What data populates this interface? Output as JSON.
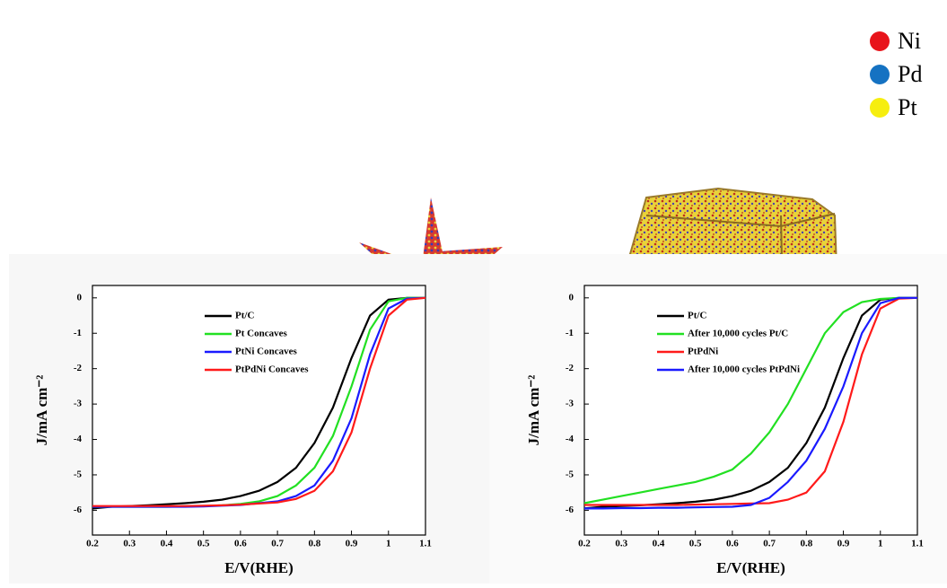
{
  "illustration": {
    "legend": [
      {
        "label": "Ni",
        "color": "#e8141b"
      },
      {
        "label": "Pd",
        "color": "#1572c2"
      },
      {
        "label": "Pt",
        "color": "#f6ee0f"
      }
    ]
  },
  "chart_data": [
    {
      "type": "line",
      "xlabel": "E/V(RHE)",
      "ylabel": "J/mA cm⁻²",
      "xlim": [
        0.2,
        1.1
      ],
      "ylim": [
        -6.7,
        0.35
      ],
      "xticks": [
        0.2,
        0.3,
        0.4,
        0.5,
        0.6,
        0.7,
        0.8,
        0.9,
        1.0,
        1.1
      ],
      "yticks": [
        0,
        -1,
        -2,
        -3,
        -4,
        -5,
        -6
      ],
      "x": [
        0.2,
        0.25,
        0.3,
        0.35,
        0.4,
        0.45,
        0.5,
        0.55,
        0.6,
        0.65,
        0.7,
        0.75,
        0.8,
        0.85,
        0.9,
        0.95,
        1.0,
        1.05,
        1.1
      ],
      "series": [
        {
          "name": "Pt/C",
          "color": "#000000",
          "values": [
            -5.95,
            -5.9,
            -5.88,
            -5.86,
            -5.83,
            -5.8,
            -5.76,
            -5.7,
            -5.6,
            -5.45,
            -5.2,
            -4.8,
            -4.1,
            -3.1,
            -1.7,
            -0.5,
            -0.05,
            0,
            0
          ]
        },
        {
          "name": "Pt Concaves",
          "color": "#22e022",
          "values": [
            -5.9,
            -5.9,
            -5.9,
            -5.9,
            -5.9,
            -5.89,
            -5.88,
            -5.86,
            -5.82,
            -5.75,
            -5.6,
            -5.3,
            -4.8,
            -3.9,
            -2.5,
            -0.9,
            -0.1,
            0,
            0
          ]
        },
        {
          "name": "PtNi Concaves",
          "color": "#1a1aff",
          "values": [
            -5.9,
            -5.9,
            -5.9,
            -5.9,
            -5.9,
            -5.9,
            -5.89,
            -5.87,
            -5.85,
            -5.8,
            -5.75,
            -5.6,
            -5.3,
            -4.6,
            -3.4,
            -1.6,
            -0.3,
            -0.02,
            0
          ]
        },
        {
          "name": "PtPdNi Concaves",
          "color": "#ff1a1a",
          "values": [
            -5.88,
            -5.88,
            -5.88,
            -5.88,
            -5.88,
            -5.88,
            -5.87,
            -5.86,
            -5.84,
            -5.81,
            -5.78,
            -5.68,
            -5.45,
            -4.9,
            -3.8,
            -2.0,
            -0.5,
            -0.05,
            0
          ]
        }
      ]
    },
    {
      "type": "line",
      "xlabel": "E/V(RHE)",
      "ylabel": "J/mA cm⁻²",
      "xlim": [
        0.2,
        1.1
      ],
      "ylim": [
        -6.7,
        0.35
      ],
      "xticks": [
        0.2,
        0.3,
        0.4,
        0.5,
        0.6,
        0.7,
        0.8,
        0.9,
        1.0,
        1.1
      ],
      "yticks": [
        0,
        -1,
        -2,
        -3,
        -4,
        -5,
        -6
      ],
      "x": [
        0.2,
        0.25,
        0.3,
        0.35,
        0.4,
        0.45,
        0.5,
        0.55,
        0.6,
        0.65,
        0.7,
        0.75,
        0.8,
        0.85,
        0.9,
        0.95,
        1.0,
        1.05,
        1.1
      ],
      "series": [
        {
          "name": "Pt/C",
          "color": "#000000",
          "values": [
            -5.95,
            -5.9,
            -5.88,
            -5.86,
            -5.83,
            -5.8,
            -5.76,
            -5.7,
            -5.6,
            -5.45,
            -5.2,
            -4.8,
            -4.1,
            -3.1,
            -1.7,
            -0.5,
            -0.05,
            0,
            0
          ]
        },
        {
          "name": "After 10,000 cycles Pt/C",
          "color": "#22e022",
          "values": [
            -5.8,
            -5.7,
            -5.6,
            -5.5,
            -5.4,
            -5.3,
            -5.2,
            -5.05,
            -4.85,
            -4.4,
            -3.8,
            -3.0,
            -2.0,
            -1.0,
            -0.4,
            -0.12,
            -0.03,
            0,
            0
          ]
        },
        {
          "name": "PtPdNi",
          "color": "#ff1a1a",
          "values": [
            -5.85,
            -5.85,
            -5.85,
            -5.85,
            -5.85,
            -5.85,
            -5.84,
            -5.83,
            -5.82,
            -5.81,
            -5.8,
            -5.7,
            -5.5,
            -4.9,
            -3.5,
            -1.6,
            -0.3,
            -0.02,
            0
          ]
        },
        {
          "name": "After 10,000 cycles PtPdNi",
          "color": "#1a1aff",
          "values": [
            -5.95,
            -5.95,
            -5.94,
            -5.94,
            -5.93,
            -5.93,
            -5.92,
            -5.91,
            -5.9,
            -5.85,
            -5.65,
            -5.2,
            -4.6,
            -3.7,
            -2.5,
            -1.0,
            -0.15,
            0,
            0
          ]
        }
      ]
    }
  ]
}
